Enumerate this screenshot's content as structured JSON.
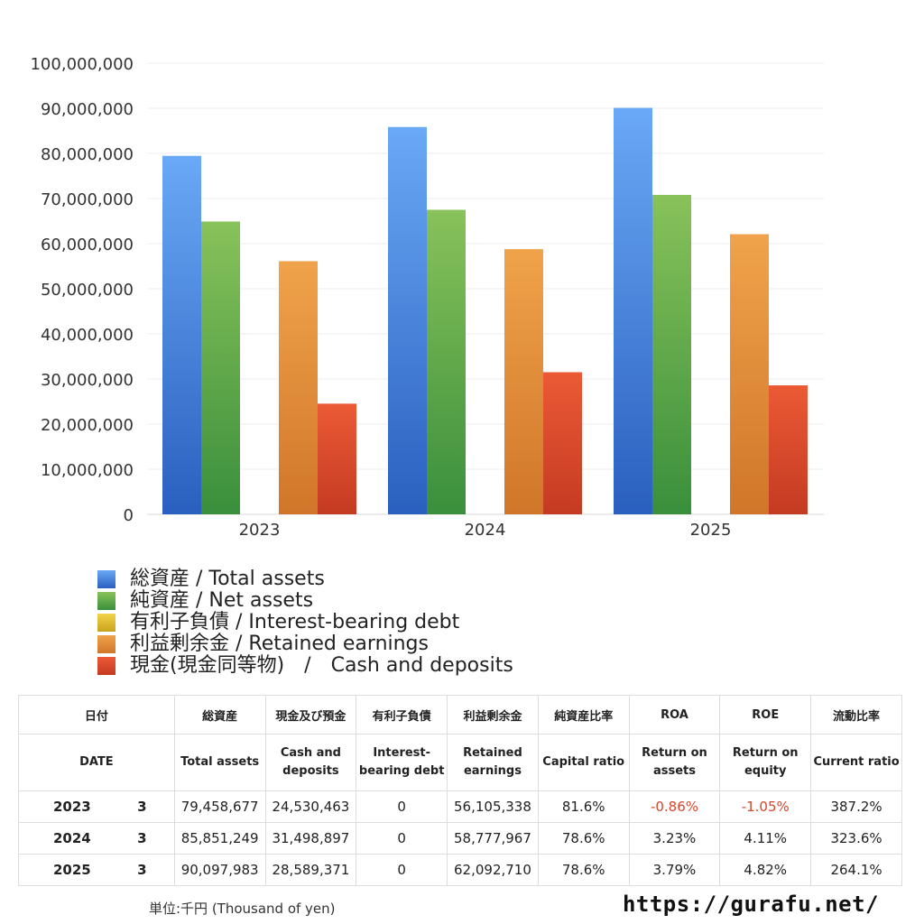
{
  "chart_data": {
    "type": "bar",
    "categories": [
      "2023",
      "2024",
      "2025"
    ],
    "ylim": [
      0,
      100000000
    ],
    "yticks": [
      "0",
      "10,000,000",
      "20,000,000",
      "30,000,000",
      "40,000,000",
      "50,000,000",
      "60,000,000",
      "70,000,000",
      "80,000,000",
      "90,000,000",
      "100,000,000"
    ],
    "grid": true,
    "legend_position": "bottom",
    "series": [
      {
        "name": "総資産 / Total assets",
        "values": [
          79458677,
          85851249,
          90097983
        ],
        "color_top": "#6aa9f5",
        "color_bottom": "#2a5fbf"
      },
      {
        "name": "純資産 / Net assets",
        "values": [
          64900000,
          67500000,
          70800000
        ],
        "color_top": "#88c25a",
        "color_bottom": "#3a8f3c"
      },
      {
        "name": "有利子負債 / Interest-bearing debt",
        "values": [
          0,
          0,
          0
        ],
        "color_top": "#f2d449",
        "color_bottom": "#c9a21b"
      },
      {
        "name": "利益剰余金 / Retained earnings",
        "values": [
          56105338,
          58777967,
          62092710
        ],
        "color_top": "#f0a34a",
        "color_bottom": "#d0762a"
      },
      {
        "name": "現金(現金同等物)　/　Cash and deposits",
        "values": [
          24530463,
          31498897,
          28589371
        ],
        "color_top": "#ec5a35",
        "color_bottom": "#c43a22"
      }
    ]
  },
  "table": {
    "headers_jp": [
      "日付",
      "総資産",
      "現金及び預金",
      "有利子負債",
      "利益剰余金",
      "純資産比率",
      "ROA",
      "ROE",
      "流動比率"
    ],
    "headers_en": [
      "DATE",
      "Total assets",
      "Cash and deposits",
      "Interest-bearing debt",
      "Retained earnings",
      "Capital ratio",
      "Return on assets",
      "Return on equity",
      "Current ratio"
    ],
    "rows": [
      {
        "year": "2023",
        "month": "3",
        "total_assets": "79,458,677",
        "cash": "24,530,463",
        "debt": "0",
        "retained": "56,105,338",
        "capital_ratio": "81.6%",
        "roa": "-0.86%",
        "roe": "-1.05%",
        "current_ratio": "387.2%"
      },
      {
        "year": "2024",
        "month": "3",
        "total_assets": "85,851,249",
        "cash": "31,498,897",
        "debt": "0",
        "retained": "58,777,967",
        "capital_ratio": "78.6%",
        "roa": "3.23%",
        "roe": "4.11%",
        "current_ratio": "323.6%"
      },
      {
        "year": "2025",
        "month": "3",
        "total_assets": "90,097,983",
        "cash": "28,589,371",
        "debt": "0",
        "retained": "62,092,710",
        "capital_ratio": "78.6%",
        "roa": "3.79%",
        "roe": "4.82%",
        "current_ratio": "264.1%"
      }
    ],
    "negative_color": "#d9452b"
  },
  "footer": {
    "unit": "単位:千円 (Thousand of yen)",
    "site": "https://gurafu.net/"
  }
}
